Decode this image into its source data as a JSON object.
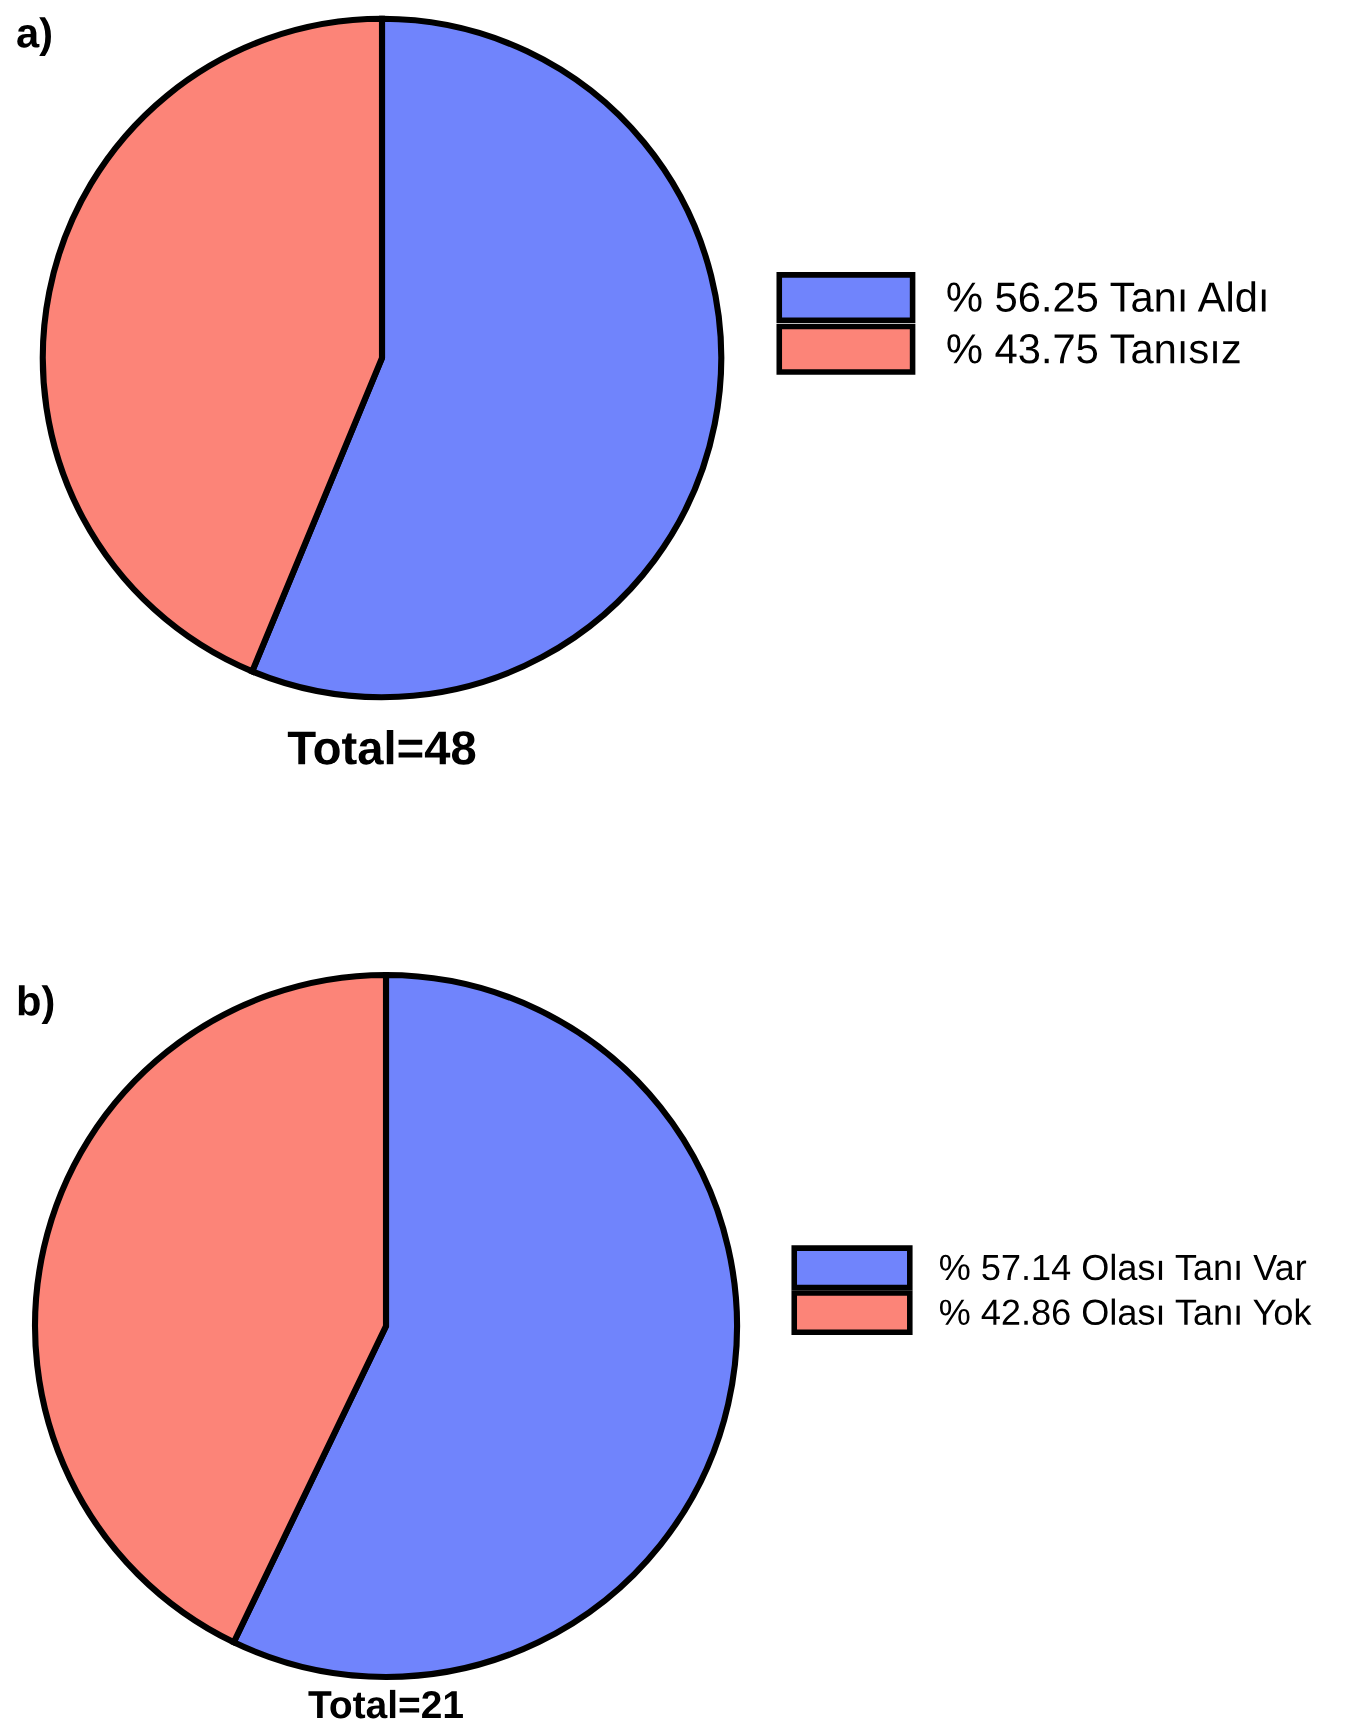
{
  "chart_data": [
    {
      "type": "pie",
      "title": "a)",
      "categories": [
        "% 56.25 Tanı Aldı",
        "% 43.75 Tanısız"
      ],
      "values": [
        56.25,
        43.75
      ],
      "colors": [
        "#7084fc",
        "#fc8478"
      ],
      "legend": "right",
      "annotations": [
        "Total=48"
      ]
    },
    {
      "type": "pie",
      "title": "b)",
      "categories": [
        "% 57.14 Olası Tanı Var",
        "% 42.86 Olası Tanı Yok"
      ],
      "values": [
        57.14,
        42.86
      ],
      "colors": [
        "#7084fc",
        "#fc8478"
      ],
      "legend": "right",
      "annotations": [
        "Total=21"
      ]
    }
  ]
}
